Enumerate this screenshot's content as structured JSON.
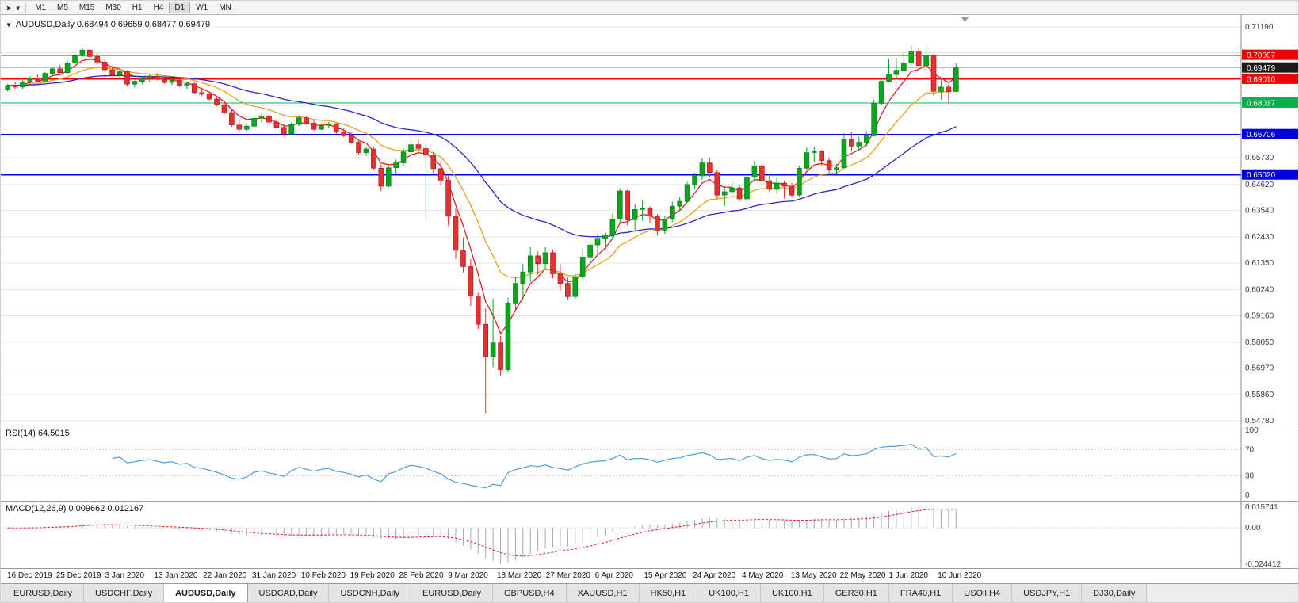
{
  "toolbar": {
    "left_icons": [
      "chart-cursor-icon",
      "dropdown-arrow-icon"
    ],
    "timeframes": [
      "M1",
      "M5",
      "M15",
      "M30",
      "H1",
      "H4",
      "D1",
      "W1",
      "MN"
    ],
    "active_timeframe": "D1"
  },
  "chart_data": {
    "type": "candlestick",
    "symbol": "AUDUSD",
    "period": "Daily",
    "title": "AUDUSD,Daily 0.68494 0.69659 0.68477 0.69479",
    "open": 0.68494,
    "high": 0.69659,
    "low": 0.68477,
    "close": 0.69479,
    "up_color": "#0aa41e",
    "down_color": "#e53030",
    "price_axis": {
      "max": 0.7168,
      "min": 0.5458,
      "grid_prices": [
        0.7119,
        0.7011,
        0.6903,
        0.6792,
        0.6681,
        0.6573,
        0.6462,
        0.6354,
        0.6243,
        0.6135,
        0.6024,
        0.5916,
        0.5805,
        0.5697,
        0.5586,
        0.5478
      ],
      "labels": [
        "0.71190",
        "0.65730",
        "0.64620",
        "0.63540",
        "0.62430",
        "0.61350",
        "0.60240",
        "0.59160",
        "0.58050",
        "0.56970",
        "0.55860",
        "0.54780"
      ]
    },
    "hlines": [
      {
        "price": 0.70007,
        "label": "0.70007",
        "color": "#f00000"
      },
      {
        "price": 0.6901,
        "label": "0.69010",
        "color": "#f00000"
      },
      {
        "price": 0.68017,
        "label": "0.68017",
        "color": "#00b44b"
      },
      {
        "price": 0.66706,
        "label": "0.66706",
        "color": "#0000dd"
      },
      {
        "price": 0.6502,
        "label": "0.65020",
        "color": "#0000dd"
      }
    ],
    "current_price": {
      "value": 0.69479,
      "label": "0.69479",
      "color": "#1a1a1a"
    },
    "moving_averages": [
      {
        "period": 5,
        "color": "#dd2222"
      },
      {
        "period": 13,
        "color": "#dfa520"
      },
      {
        "period": 34,
        "color": "#2828c8"
      }
    ],
    "candles": [
      [
        0.6858,
        0.6882,
        0.685,
        0.6875
      ],
      [
        0.6875,
        0.689,
        0.6861,
        0.6868
      ],
      [
        0.6868,
        0.6896,
        0.686,
        0.689
      ],
      [
        0.689,
        0.6912,
        0.688,
        0.6905
      ],
      [
        0.6905,
        0.6921,
        0.6886,
        0.6893
      ],
      [
        0.6893,
        0.6931,
        0.6888,
        0.6925
      ],
      [
        0.6925,
        0.6951,
        0.6915,
        0.6944
      ],
      [
        0.6944,
        0.6961,
        0.6921,
        0.6928
      ],
      [
        0.6928,
        0.6976,
        0.6922,
        0.6968
      ],
      [
        0.6968,
        0.7006,
        0.6958,
        0.6998
      ],
      [
        0.6998,
        0.7032,
        0.699,
        0.7022
      ],
      [
        0.7022,
        0.7031,
        0.6986,
        0.6995
      ],
      [
        0.6995,
        0.7011,
        0.6961,
        0.6972
      ],
      [
        0.6972,
        0.6986,
        0.6931,
        0.694
      ],
      [
        0.694,
        0.6956,
        0.6911,
        0.6918
      ],
      [
        0.6918,
        0.6941,
        0.6901,
        0.6932
      ],
      [
        0.6932,
        0.6939,
        0.6871,
        0.688
      ],
      [
        0.688,
        0.6901,
        0.6866,
        0.6892
      ],
      [
        0.6892,
        0.6913,
        0.6881,
        0.6905
      ],
      [
        0.6905,
        0.6921,
        0.6891,
        0.6913
      ],
      [
        0.6913,
        0.6926,
        0.6896,
        0.69
      ],
      [
        0.69,
        0.6911,
        0.6881,
        0.6887
      ],
      [
        0.6887,
        0.6906,
        0.6876,
        0.6896
      ],
      [
        0.6896,
        0.6901,
        0.6869,
        0.6874
      ],
      [
        0.6874,
        0.6891,
        0.6861,
        0.6882
      ],
      [
        0.6882,
        0.6886,
        0.6839,
        0.6845
      ],
      [
        0.6845,
        0.6861,
        0.6831,
        0.6838
      ],
      [
        0.6838,
        0.6849,
        0.6811,
        0.6818
      ],
      [
        0.6818,
        0.6831,
        0.6789,
        0.6795
      ],
      [
        0.6795,
        0.6811,
        0.6756,
        0.6762
      ],
      [
        0.6762,
        0.6776,
        0.6701,
        0.671
      ],
      [
        0.671,
        0.6731,
        0.6683,
        0.6692
      ],
      [
        0.6692,
        0.6716,
        0.6686,
        0.6705
      ],
      [
        0.6705,
        0.6746,
        0.6699,
        0.6738
      ],
      [
        0.6738,
        0.6756,
        0.6721,
        0.6748
      ],
      [
        0.6748,
        0.6753,
        0.6716,
        0.6722
      ],
      [
        0.6722,
        0.6731,
        0.6696,
        0.67
      ],
      [
        0.67,
        0.6713,
        0.6662,
        0.6672
      ],
      [
        0.6672,
        0.6721,
        0.6668,
        0.6712
      ],
      [
        0.6712,
        0.6749,
        0.6706,
        0.674
      ],
      [
        0.674,
        0.6746,
        0.6711,
        0.6718
      ],
      [
        0.6718,
        0.6729,
        0.6686,
        0.6692
      ],
      [
        0.6692,
        0.6716,
        0.6689,
        0.6708
      ],
      [
        0.6708,
        0.6723,
        0.6696,
        0.6715
      ],
      [
        0.6715,
        0.6719,
        0.6673,
        0.668
      ],
      [
        0.668,
        0.6696,
        0.6659,
        0.6665
      ],
      [
        0.6665,
        0.6679,
        0.6631,
        0.6638
      ],
      [
        0.6638,
        0.6646,
        0.6586,
        0.6595
      ],
      [
        0.6595,
        0.6621,
        0.6581,
        0.661
      ],
      [
        0.661,
        0.6619,
        0.6521,
        0.653
      ],
      [
        0.653,
        0.6546,
        0.6434,
        0.6455
      ],
      [
        0.6455,
        0.6543,
        0.6451,
        0.6532
      ],
      [
        0.6532,
        0.6566,
        0.6506,
        0.6552
      ],
      [
        0.6552,
        0.6611,
        0.6541,
        0.6598
      ],
      [
        0.6598,
        0.6641,
        0.6586,
        0.6628
      ],
      [
        0.6628,
        0.6649,
        0.6599,
        0.6612
      ],
      [
        0.6612,
        0.6626,
        0.6313,
        0.6585
      ],
      [
        0.6585,
        0.6599,
        0.6511,
        0.6528
      ],
      [
        0.6528,
        0.6559,
        0.6461,
        0.648
      ],
      [
        0.648,
        0.6499,
        0.6291,
        0.633
      ],
      [
        0.633,
        0.6366,
        0.6151,
        0.6188
      ],
      [
        0.6188,
        0.6241,
        0.6096,
        0.612
      ],
      [
        0.612,
        0.6151,
        0.5956,
        0.5998
      ],
      [
        0.5998,
        0.6011,
        0.5861,
        0.588
      ],
      [
        0.588,
        0.5946,
        0.551,
        0.5745
      ],
      [
        0.5745,
        0.5986,
        0.5701,
        0.5802
      ],
      [
        0.5802,
        0.5831,
        0.5666,
        0.569
      ],
      [
        0.569,
        0.5991,
        0.5681,
        0.5965
      ],
      [
        0.5965,
        0.6076,
        0.5941,
        0.605
      ],
      [
        0.605,
        0.6131,
        0.5981,
        0.6098
      ],
      [
        0.6098,
        0.6201,
        0.6056,
        0.6165
      ],
      [
        0.6165,
        0.6183,
        0.6086,
        0.6132
      ],
      [
        0.6132,
        0.6201,
        0.6111,
        0.6178
      ],
      [
        0.6178,
        0.6191,
        0.6071,
        0.609
      ],
      [
        0.609,
        0.6129,
        0.6021,
        0.605
      ],
      [
        0.605,
        0.6076,
        0.5983,
        0.5995
      ],
      [
        0.5995,
        0.6091,
        0.5986,
        0.6078
      ],
      [
        0.6078,
        0.6196,
        0.6071,
        0.616
      ],
      [
        0.616,
        0.6226,
        0.6136,
        0.621
      ],
      [
        0.621,
        0.6256,
        0.6171,
        0.6238
      ],
      [
        0.6238,
        0.6261,
        0.6201,
        0.6252
      ],
      [
        0.6252,
        0.6341,
        0.6236,
        0.6318
      ],
      [
        0.6318,
        0.6446,
        0.6301,
        0.6435
      ],
      [
        0.6435,
        0.6441,
        0.6291,
        0.6315
      ],
      [
        0.6315,
        0.6381,
        0.6266,
        0.6358
      ],
      [
        0.6358,
        0.6396,
        0.6311,
        0.6362
      ],
      [
        0.6362,
        0.6371,
        0.6301,
        0.633
      ],
      [
        0.633,
        0.6339,
        0.6251,
        0.6272
      ],
      [
        0.6272,
        0.6331,
        0.6256,
        0.6318
      ],
      [
        0.6318,
        0.6391,
        0.6306,
        0.6372
      ],
      [
        0.6372,
        0.6411,
        0.6353,
        0.6392
      ],
      [
        0.6392,
        0.6473,
        0.6386,
        0.6462
      ],
      [
        0.6462,
        0.6511,
        0.6441,
        0.6498
      ],
      [
        0.6498,
        0.6571,
        0.6481,
        0.6552
      ],
      [
        0.6552,
        0.6573,
        0.6491,
        0.6512
      ],
      [
        0.6512,
        0.6521,
        0.6401,
        0.6418
      ],
      [
        0.6418,
        0.6456,
        0.6373,
        0.6432
      ],
      [
        0.6432,
        0.6476,
        0.6406,
        0.6448
      ],
      [
        0.6448,
        0.6459,
        0.6391,
        0.6402
      ],
      [
        0.6402,
        0.6501,
        0.6396,
        0.6492
      ],
      [
        0.6492,
        0.6561,
        0.6476,
        0.654
      ],
      [
        0.654,
        0.6549,
        0.6461,
        0.6478
      ],
      [
        0.6478,
        0.6506,
        0.6433,
        0.6442
      ],
      [
        0.6442,
        0.6491,
        0.6423,
        0.6468
      ],
      [
        0.6468,
        0.6479,
        0.6403,
        0.6455
      ],
      [
        0.6455,
        0.6469,
        0.6411,
        0.6418
      ],
      [
        0.6418,
        0.6541,
        0.6413,
        0.653
      ],
      [
        0.653,
        0.6617,
        0.6521,
        0.6595
      ],
      [
        0.6595,
        0.6619,
        0.6553,
        0.66
      ],
      [
        0.66,
        0.6606,
        0.6541,
        0.6562
      ],
      [
        0.6562,
        0.6573,
        0.6509,
        0.6525
      ],
      [
        0.6525,
        0.6549,
        0.6506,
        0.6532
      ],
      [
        0.6532,
        0.6676,
        0.6529,
        0.665
      ],
      [
        0.665,
        0.6681,
        0.6601,
        0.6622
      ],
      [
        0.6622,
        0.6661,
        0.6603,
        0.6638
      ],
      [
        0.6638,
        0.6685,
        0.6621,
        0.6665
      ],
      [
        0.6665,
        0.6816,
        0.6661,
        0.68
      ],
      [
        0.68,
        0.6901,
        0.6791,
        0.6892
      ],
      [
        0.6892,
        0.6984,
        0.6886,
        0.692
      ],
      [
        0.692,
        0.6989,
        0.6901,
        0.6938
      ],
      [
        0.6938,
        0.7014,
        0.6933,
        0.6968
      ],
      [
        0.6968,
        0.7043,
        0.6956,
        0.7018
      ],
      [
        0.7018,
        0.7029,
        0.6941,
        0.6958
      ],
      [
        0.6958,
        0.7041,
        0.6951,
        0.7
      ],
      [
        0.7,
        0.7006,
        0.6833,
        0.685
      ],
      [
        0.685,
        0.6906,
        0.6816,
        0.6868
      ],
      [
        0.6868,
        0.6881,
        0.6801,
        0.6849
      ],
      [
        0.68494,
        0.69659,
        0.68477,
        0.69479
      ]
    ],
    "rsi": {
      "label": "RSI(14) 64.5015",
      "period": 14,
      "last": 64.5015,
      "levels": [
        100,
        70,
        30,
        0
      ],
      "color": "#4f9ed9"
    },
    "macd": {
      "label": "MACD(12,26,9) 0.009662 0.012167",
      "fast": 12,
      "slow": 26,
      "signal_period": 9,
      "main_value": 0.009662,
      "signal_value": 0.012167,
      "scale_labels": [
        "0.015741",
        "0.00",
        "-0.024412"
      ],
      "hist_color": "#a8a8a8",
      "signal_color": "#dd2222"
    },
    "dates": [
      "16 Dec 2019",
      "25 Dec 2019",
      "3 Jan 2020",
      "13 Jan 2020",
      "22 Jan 2020",
      "31 Jan 2020",
      "10 Feb 2020",
      "19 Feb 2020",
      "28 Feb 2020",
      "9 Mar 2020",
      "18 Mar 2020",
      "27 Mar 2020",
      "6 Apr 2020",
      "15 Apr 2020",
      "24 Apr 2020",
      "4 May 2020",
      "13 May 2020",
      "22 May 2020",
      "1 Jun 2020",
      "10 Jun 2020"
    ]
  },
  "tabs": {
    "active_index": 2,
    "items": [
      "EURUSD,Daily",
      "USDCHF,Daily",
      "AUDUSD,Daily",
      "USDCAD,Daily",
      "USDCNH,Daily",
      "EURUSD,Daily",
      "GBPUSD,H4",
      "XAUUSD,H1",
      "HK50,H1",
      "UK100,H1",
      "UK100,H1",
      "GER30,H1",
      "FRA40,H1",
      "USOil,H4",
      "USDJPY,H1",
      "DJ30,Daily"
    ]
  }
}
